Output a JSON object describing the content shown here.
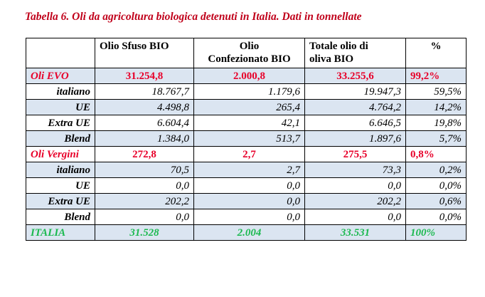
{
  "title": "Tabella 6. Oli da agricoltura biologica detenuti in Italia. Dati in tonnellate",
  "headers": {
    "c1": "Olio Sfuso BIO",
    "c2_line1": "Olio",
    "c2_line2": "Confezionato BIO",
    "c3_line1": "Totale olio di",
    "c3_line2": "oliva BIO",
    "c4": "%"
  },
  "rows": [
    {
      "label": "Oli EVO",
      "sfuso": "31.254,8",
      "confezionato": "2.000,8",
      "totale": "33.255,6",
      "pct": "99,2%"
    },
    {
      "label": "italiano",
      "sfuso": "18.767,7",
      "confezionato": "1.179,6",
      "totale": "19.947,3",
      "pct": "59,5%"
    },
    {
      "label": "UE",
      "sfuso": "4.498,8",
      "confezionato": "265,4",
      "totale": "4.764,2",
      "pct": "14,2%"
    },
    {
      "label": "Extra UE",
      "sfuso": "6.604,4",
      "confezionato": "42,1",
      "totale": "6.646,5",
      "pct": "19,8%"
    },
    {
      "label": "Blend",
      "sfuso": "1.384,0",
      "confezionato": "513,7",
      "totale": "1.897,6",
      "pct": "5,7%"
    },
    {
      "label": "Oli Vergini",
      "sfuso": "272,8",
      "confezionato": "2,7",
      "totale": "275,5",
      "pct": "0,8%"
    },
    {
      "label": "italiano",
      "sfuso": "70,5",
      "confezionato": "2,7",
      "totale": "73,3",
      "pct": "0,2%"
    },
    {
      "label": "UE",
      "sfuso": "0,0",
      "confezionato": "0,0",
      "totale": "0,0",
      "pct": "0,0%"
    },
    {
      "label": "Extra UE",
      "sfuso": "202,2",
      "confezionato": "0,0",
      "totale": "202,2",
      "pct": "0,6%"
    },
    {
      "label": "Blend",
      "sfuso": "0,0",
      "confezionato": "0,0",
      "totale": "0,0",
      "pct": "0,0%"
    },
    {
      "label": "ITALIA",
      "sfuso": "31.528",
      "confezionato": "2.004",
      "totale": "33.531",
      "pct": "100%"
    }
  ],
  "colors": {
    "title": "#c0001a",
    "category": "#e8002a",
    "total": "#1bb94f",
    "band": "#dbe5f1"
  }
}
